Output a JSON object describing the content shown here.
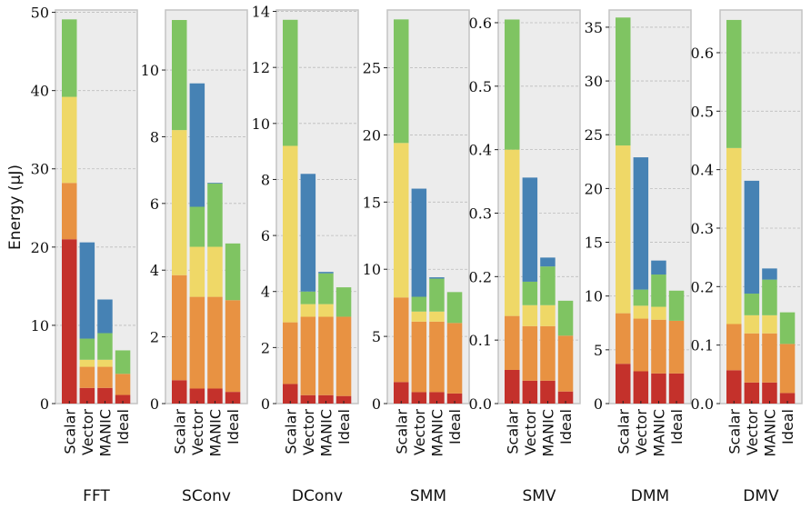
{
  "colors": [
    "#c4312b",
    "#e89242",
    "#efd867",
    "#7fc462",
    "#4682b4"
  ],
  "chart_data": [
    {
      "type": "bar",
      "stacked": true,
      "title": "FFT",
      "ylabel": "Energy (μJ)",
      "categories": [
        "Scalar",
        "Vector",
        "MANIC",
        "Ideal"
      ],
      "ylim": [
        0,
        50.3
      ],
      "yticks": [
        0,
        10,
        20,
        30,
        40,
        50
      ],
      "grid": true,
      "series": [
        {
          "color": "#c4312b",
          "values": [
            21,
            2,
            2,
            1.1
          ]
        },
        {
          "color": "#e89242",
          "values": [
            7.2,
            2.7,
            2.7,
            2.7
          ]
        },
        {
          "color": "#efd867",
          "values": [
            11,
            0.9,
            0.9,
            0
          ]
        },
        {
          "color": "#7fc462",
          "values": [
            9.9,
            2.7,
            3.4,
            3.0
          ]
        },
        {
          "color": "#4682b4",
          "values": [
            0,
            12.3,
            4.3,
            0
          ]
        }
      ]
    },
    {
      "type": "bar",
      "stacked": true,
      "title": "SConv",
      "categories": [
        "Scalar",
        "Vector",
        "MANIC",
        "Ideal"
      ],
      "ylim": [
        0,
        11.8
      ],
      "yticks": [
        0,
        2,
        4,
        6,
        8,
        10
      ],
      "grid": true,
      "series": [
        {
          "color": "#c4312b",
          "values": [
            0.7,
            0.45,
            0.45,
            0.35
          ]
        },
        {
          "color": "#e89242",
          "values": [
            3.15,
            2.75,
            2.75,
            2.75
          ]
        },
        {
          "color": "#efd867",
          "values": [
            4.35,
            1.5,
            1.5,
            0
          ]
        },
        {
          "color": "#7fc462",
          "values": [
            3.3,
            1.2,
            1.9,
            1.7
          ]
        },
        {
          "color": "#4682b4",
          "values": [
            0,
            3.7,
            0.02,
            0
          ]
        }
      ]
    },
    {
      "type": "bar",
      "stacked": true,
      "title": "DConv",
      "categories": [
        "Scalar",
        "Vector",
        "MANIC",
        "Ideal"
      ],
      "ylim": [
        0,
        14.05
      ],
      "yticks": [
        0,
        2,
        4,
        6,
        8,
        10,
        12,
        14
      ],
      "grid": true,
      "series": [
        {
          "color": "#c4312b",
          "values": [
            0.7,
            0.3,
            0.3,
            0.27
          ]
        },
        {
          "color": "#e89242",
          "values": [
            2.2,
            2.8,
            2.8,
            2.83
          ]
        },
        {
          "color": "#efd867",
          "values": [
            6.3,
            0.45,
            0.45,
            0
          ]
        },
        {
          "color": "#7fc462",
          "values": [
            4.5,
            0.45,
            1.1,
            1.05
          ]
        },
        {
          "color": "#4682b4",
          "values": [
            0,
            4.2,
            0.05,
            0
          ]
        }
      ]
    },
    {
      "type": "bar",
      "stacked": true,
      "title": "SMM",
      "categories": [
        "Scalar",
        "Vector",
        "MANIC",
        "Ideal"
      ],
      "ylim": [
        0,
        29.3
      ],
      "yticks": [
        0,
        5,
        10,
        15,
        20,
        25
      ],
      "grid": true,
      "series": [
        {
          "color": "#c4312b",
          "values": [
            1.6,
            0.85,
            0.85,
            0.75
          ]
        },
        {
          "color": "#e89242",
          "values": [
            6.3,
            5.25,
            5.25,
            5.25
          ]
        },
        {
          "color": "#efd867",
          "values": [
            11.5,
            0.75,
            0.75,
            0
          ]
        },
        {
          "color": "#7fc462",
          "values": [
            9.2,
            1.1,
            2.45,
            2.3
          ]
        },
        {
          "color": "#4682b4",
          "values": [
            0,
            8.05,
            0.1,
            0
          ]
        }
      ]
    },
    {
      "type": "bar",
      "stacked": true,
      "title": "SMV",
      "categories": [
        "Scalar",
        "Vector",
        "MANIC",
        "Ideal"
      ],
      "ylim": [
        0,
        0.62
      ],
      "yticks": [
        "0.0",
        "0.1",
        "0.2",
        "0.3",
        "0.4",
        "0.5",
        "0.6"
      ],
      "grid": true,
      "series": [
        {
          "color": "#c4312b",
          "values": [
            0.053,
            0.036,
            0.036,
            0.019
          ]
        },
        {
          "color": "#e89242",
          "values": [
            0.085,
            0.086,
            0.086,
            0.088
          ]
        },
        {
          "color": "#efd867",
          "values": [
            0.262,
            0.033,
            0.033,
            0
          ]
        },
        {
          "color": "#7fc462",
          "values": [
            0.205,
            0.037,
            0.061,
            0.055
          ]
        },
        {
          "color": "#4682b4",
          "values": [
            0,
            0.164,
            0.014,
            0
          ]
        }
      ]
    },
    {
      "type": "bar",
      "stacked": true,
      "title": "DMM",
      "categories": [
        "Scalar",
        "Vector",
        "MANIC",
        "Ideal"
      ],
      "ylim": [
        0,
        36.6
      ],
      "yticks": [
        0,
        5,
        10,
        15,
        20,
        25,
        30,
        35
      ],
      "grid": true,
      "series": [
        {
          "color": "#c4312b",
          "values": [
            3.7,
            3.0,
            2.8,
            2.8
          ]
        },
        {
          "color": "#e89242",
          "values": [
            4.7,
            4.9,
            5.0,
            4.9
          ]
        },
        {
          "color": "#efd867",
          "values": [
            15.6,
            1.2,
            1.2,
            0
          ]
        },
        {
          "color": "#7fc462",
          "values": [
            11.9,
            1.5,
            3.0,
            2.8
          ]
        },
        {
          "color": "#4682b4",
          "values": [
            0,
            12.3,
            1.3,
            0
          ]
        }
      ]
    },
    {
      "type": "bar",
      "stacked": true,
      "title": "DMV",
      "categories": [
        "Scalar",
        "Vector",
        "MANIC",
        "Ideal"
      ],
      "ylim": [
        0,
        0.673
      ],
      "yticks": [
        "0.0",
        "0.1",
        "0.2",
        "0.3",
        "0.4",
        "0.5",
        "0.6"
      ],
      "grid": true,
      "series": [
        {
          "color": "#c4312b",
          "values": [
            0.057,
            0.036,
            0.036,
            0.018
          ]
        },
        {
          "color": "#e89242",
          "values": [
            0.079,
            0.084,
            0.084,
            0.084
          ]
        },
        {
          "color": "#efd867",
          "values": [
            0.301,
            0.031,
            0.031,
            0
          ]
        },
        {
          "color": "#7fc462",
          "values": [
            0.219,
            0.037,
            0.061,
            0.054
          ]
        },
        {
          "color": "#4682b4",
          "values": [
            0,
            0.193,
            0.019,
            0
          ]
        }
      ]
    }
  ]
}
